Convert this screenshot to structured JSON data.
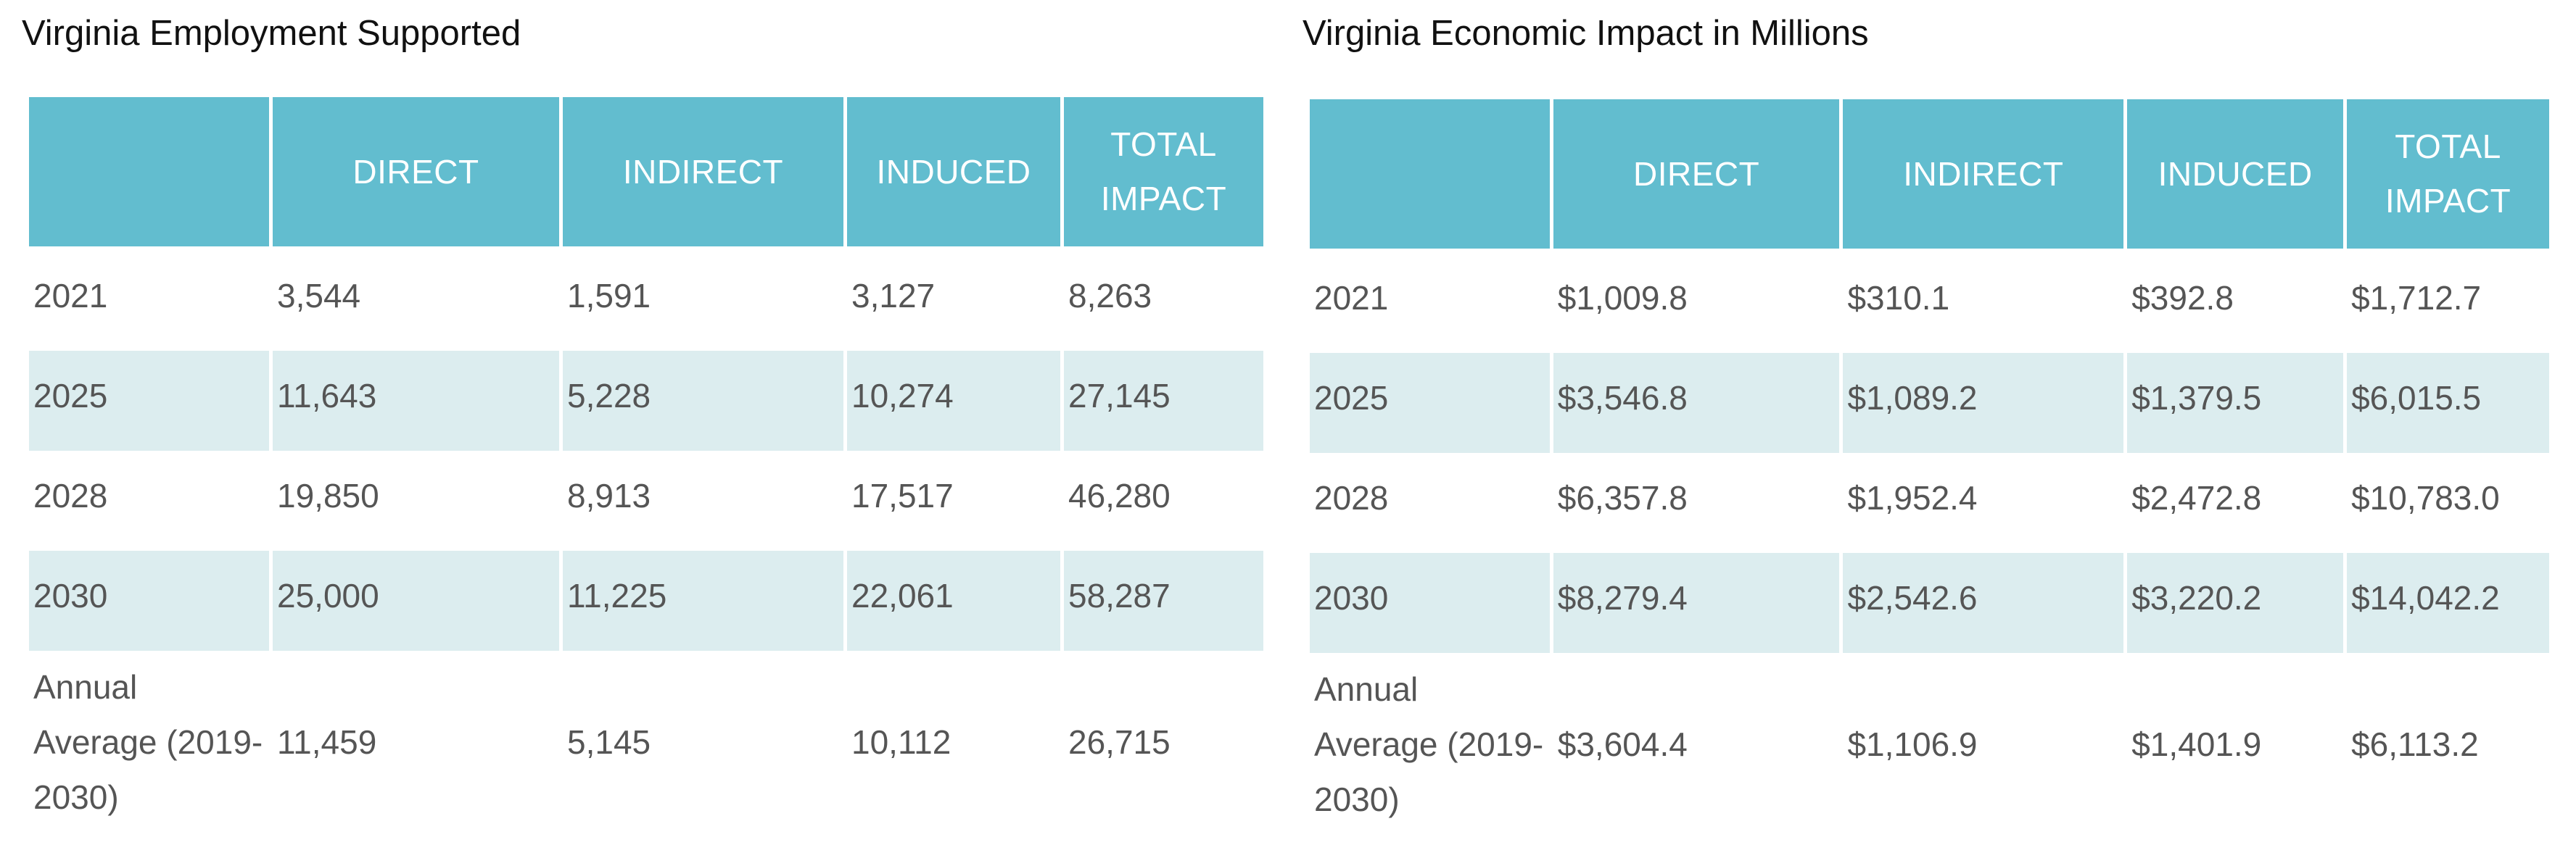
{
  "tables": [
    {
      "title": "Virginia Employment Supported",
      "headers": [
        "",
        "DIRECT",
        "INDIRECT",
        "INDUCED",
        "TOTAL IMPACT"
      ],
      "header_lines": [
        [
          ""
        ],
        [
          "DIRECT"
        ],
        [
          "INDIRECT"
        ],
        [
          "INDUCED"
        ],
        [
          "TOTAL",
          "IMPACT"
        ]
      ],
      "rows": [
        {
          "year": "2021",
          "direct": "3,544",
          "indirect": "1,591",
          "induced": "3,127",
          "total": "8,263"
        },
        {
          "year": "2025",
          "direct": "11,643",
          "indirect": "5,228",
          "induced": "10,274",
          "total": "27,145"
        },
        {
          "year": "2028",
          "direct": "19,850",
          "indirect": "8,913",
          "induced": "17,517",
          "total": "46,280"
        },
        {
          "year": "2030",
          "direct": "25,000",
          "indirect": "11,225",
          "induced": "22,061",
          "total": "58,287"
        }
      ],
      "annual": {
        "label_lines": [
          "Annual",
          "Average (2019-",
          "2030)"
        ],
        "direct": "11,459",
        "indirect": "5,145",
        "induced": "10,112",
        "total": "26,715"
      }
    },
    {
      "title": "Virginia Economic Impact in Millions",
      "headers": [
        "",
        "DIRECT",
        "INDIRECT",
        "INDUCED",
        "TOTAL IMPACT"
      ],
      "header_lines": [
        [
          ""
        ],
        [
          "DIRECT"
        ],
        [
          "INDIRECT"
        ],
        [
          "INDUCED"
        ],
        [
          "TOTAL",
          "IMPACT"
        ]
      ],
      "rows": [
        {
          "year": "2021",
          "direct": "$1,009.8",
          "indirect": "$310.1",
          "induced": "$392.8",
          "total": "$1,712.7"
        },
        {
          "year": "2025",
          "direct": "$3,546.8",
          "indirect": "$1,089.2",
          "induced": "$1,379.5",
          "total": "$6,015.5"
        },
        {
          "year": "2028",
          "direct": "$6,357.8",
          "indirect": "$1,952.4",
          "induced": "$2,472.8",
          "total": "$10,783.0"
        },
        {
          "year": "2030",
          "direct": "$8,279.4",
          "indirect": "$2,542.6",
          "induced": "$3,220.2",
          "total": "$14,042.2"
        }
      ],
      "annual": {
        "label_lines": [
          "Annual",
          "Average (2019-",
          "2030)"
        ],
        "direct": "$3,604.4",
        "indirect": "$1,106.9",
        "induced": "$1,401.9",
        "total": "$6,113.2"
      }
    }
  ],
  "colors": {
    "header_bg": "#62bdcf",
    "header_text": "#ffffff",
    "shaded_row": "#dcedef",
    "body_text": "#555555",
    "title_text": "#111111"
  }
}
